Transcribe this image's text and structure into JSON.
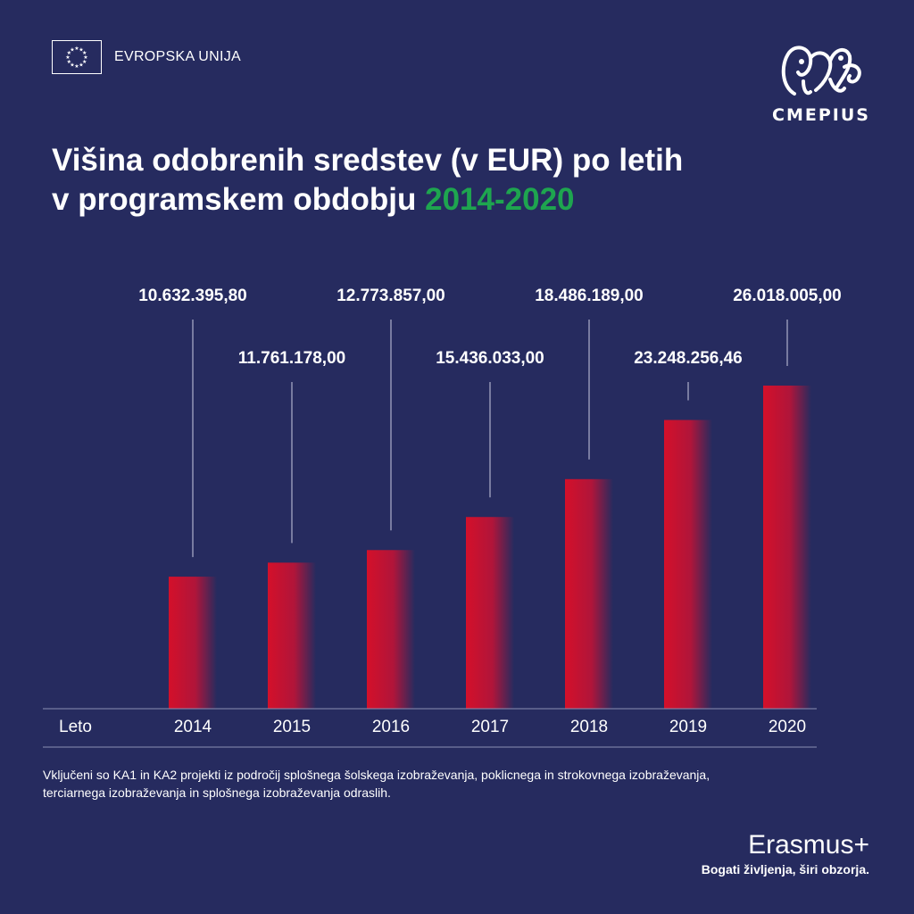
{
  "header": {
    "eu_label": "EVROPSKA UNIJA",
    "logo_name": "CMEPIUS",
    "logo_icon": "cmepius-doodle-icon",
    "flag_icon": "eu-flag-icon"
  },
  "title": {
    "line1": "Višina odobrenih sredstev (v EUR) po letih",
    "line2_prefix": "v programskem obdobju ",
    "line2_accent": "2014-2020"
  },
  "colors": {
    "background": "#262b5f",
    "accent_green": "#1ea54f",
    "bar_red": "#c8102e"
  },
  "chart_data": {
    "type": "bar",
    "category_axis_label": "Leto",
    "categories": [
      "2014",
      "2015",
      "2016",
      "2017",
      "2018",
      "2019",
      "2020"
    ],
    "values": [
      10632395.8,
      11761178.0,
      12773857.0,
      15436033.0,
      18486189.0,
      23248256.46,
      26018005.0
    ],
    "value_labels": [
      "10.632.395,80",
      "11.761.178,00",
      "12.773.857,00",
      "15.436.033,00",
      "18.486.189,00",
      "23.248.256,46",
      "26.018.005,00"
    ],
    "unit": "EUR",
    "ylim": [
      0,
      26018005.0
    ],
    "grid": false,
    "legend": "none"
  },
  "footnote": "Vključeni so KA1 in KA2 projekti iz področij splošnega šolskega izobraževanja, poklicnega in strokovnega izobraževanja, terciarnega izobraževanja in splošnega izobraževanja odraslih.",
  "footer": {
    "brand": "Erasmus+",
    "slogan": "Bogati življenja, širi obzorja."
  }
}
